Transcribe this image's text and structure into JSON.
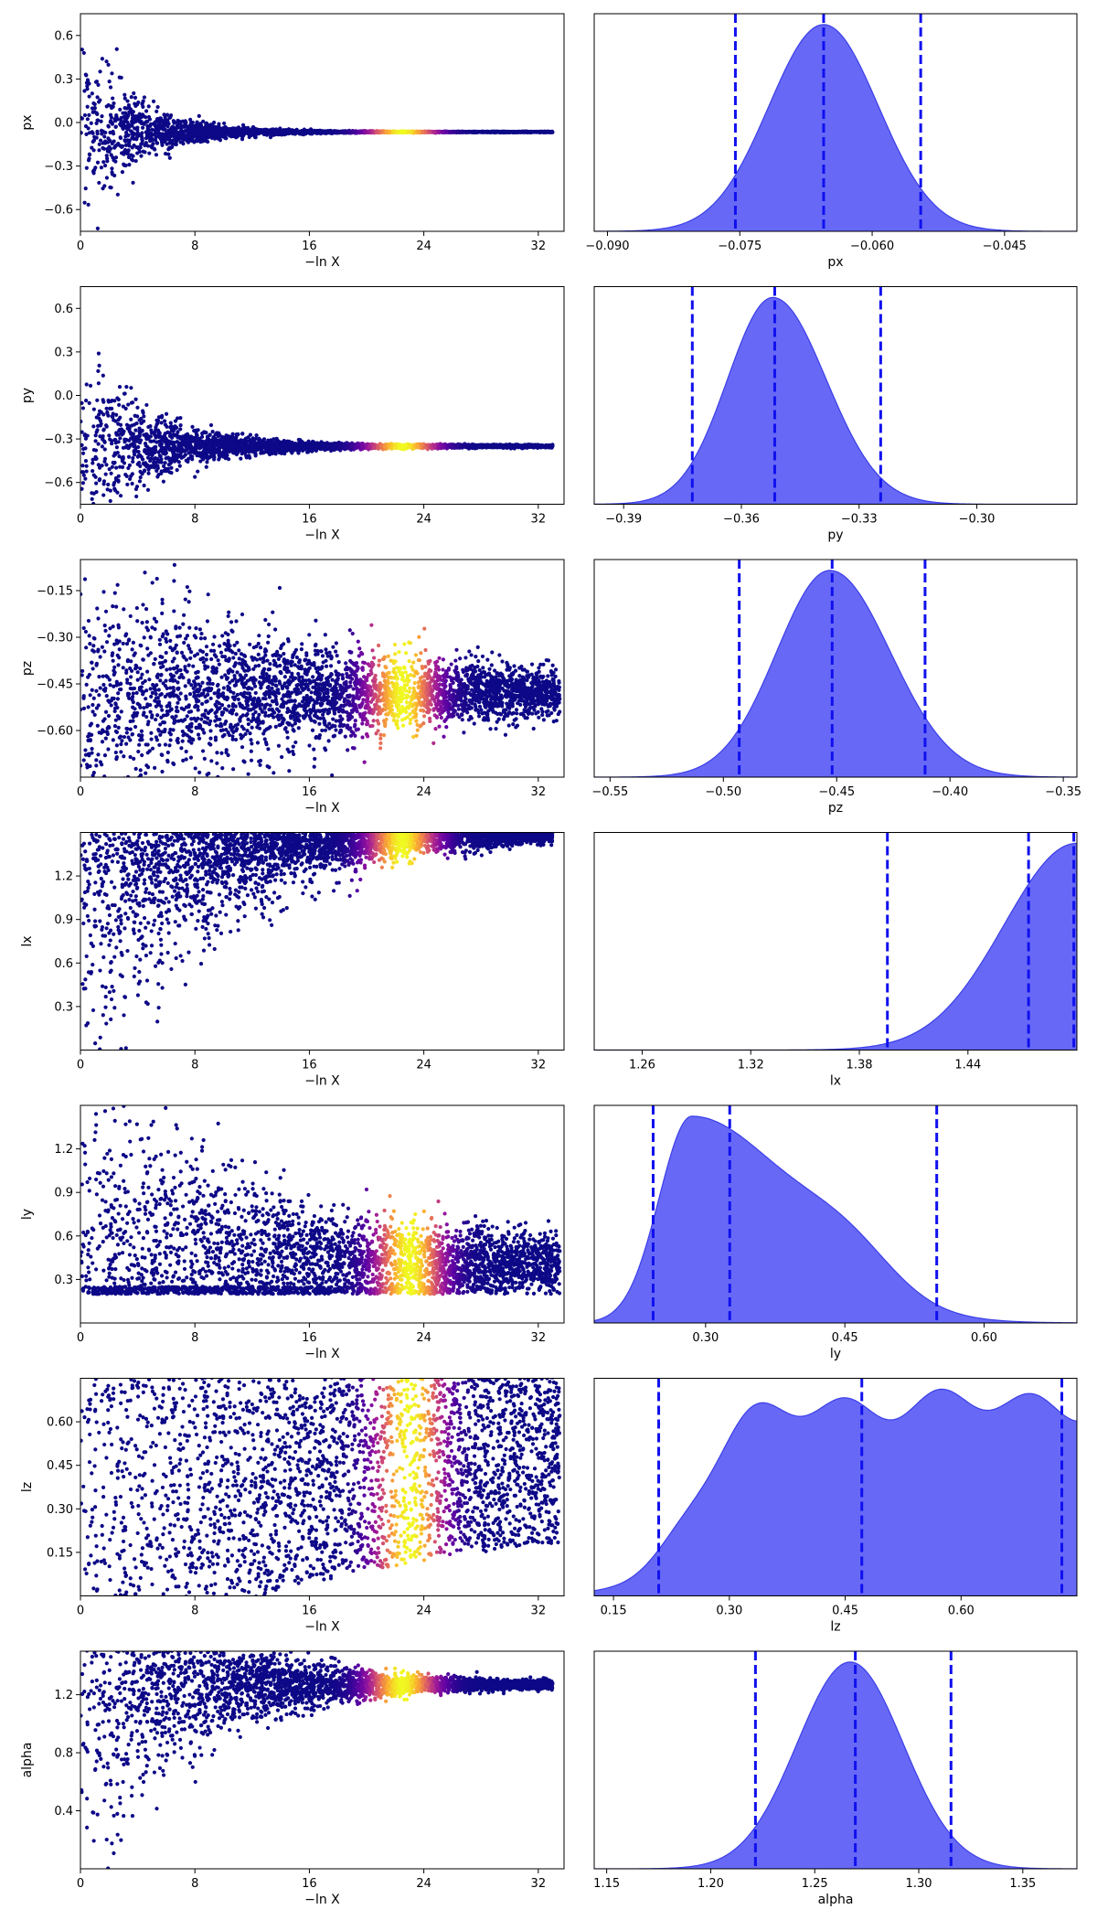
{
  "figure": {
    "kind": "dynesty trace plot",
    "xlabel_trace": "−ln X"
  },
  "colors": {
    "posterior_fill": "#5a5cf5",
    "posterior_line": "#3b3ee8",
    "quantile_line": "#1010ee",
    "colormap": [
      "#0d0887",
      "#5b02a3",
      "#9a179b",
      "#cb4678",
      "#eb7852",
      "#fbb32f",
      "#f0f921"
    ]
  },
  "chart_data": [
    {
      "type": "scatter",
      "panel": "trace",
      "param": "px",
      "ylabel": "px",
      "xlabel": "−ln X",
      "xlim": [
        0,
        33.8
      ],
      "ylim": [
        -0.75,
        0.75
      ],
      "xticks": [
        0,
        8,
        16,
        24,
        32
      ],
      "xtick_labels": [
        "0",
        "8",
        "16",
        "24",
        "32"
      ],
      "yticks": [
        -0.6,
        -0.3,
        0.0,
        0.3,
        0.6
      ],
      "ytick_labels": [
        "−0.6",
        "−0.3",
        "0.0",
        "0.3",
        "0.6"
      ],
      "trace": {
        "center": -0.065,
        "width_start": 0.75,
        "width_end": 0.003,
        "decay": 0.28,
        "x_end": 33.0,
        "weight_peak": 22.5
      }
    },
    {
      "type": "area",
      "panel": "posterior",
      "param": "px",
      "xlabel": "px",
      "xlim": [
        -0.0915,
        -0.0368
      ],
      "xticks": [
        -0.09,
        -0.075,
        -0.06,
        -0.045
      ],
      "xtick_labels": [
        "−0.090",
        "−0.075",
        "−0.060",
        "−0.045"
      ],
      "density": {
        "mean": -0.0655,
        "sd": 0.0062,
        "skew": 0.0
      },
      "quantiles": [
        -0.0755,
        -0.0655,
        -0.0545
      ]
    },
    {
      "type": "scatter",
      "panel": "trace",
      "param": "py",
      "ylabel": "py",
      "xlabel": "−ln X",
      "xlim": [
        0,
        33.8
      ],
      "ylim": [
        -0.75,
        0.75
      ],
      "xticks": [
        0,
        8,
        16,
        24,
        32
      ],
      "xtick_labels": [
        "0",
        "8",
        "16",
        "24",
        "32"
      ],
      "yticks": [
        -0.6,
        -0.3,
        0.0,
        0.3,
        0.6
      ],
      "ytick_labels": [
        "−0.6",
        "−0.3",
        "0.0",
        "0.3",
        "0.6"
      ],
      "trace": {
        "center": -0.35,
        "width_start": 0.75,
        "width_end": 0.01,
        "decay": 0.22,
        "x_end": 33.0,
        "weight_peak": 22.5
      }
    },
    {
      "type": "area",
      "panel": "posterior",
      "param": "py",
      "xlabel": "py",
      "xlim": [
        -0.3975,
        -0.2745
      ],
      "xticks": [
        -0.39,
        -0.36,
        -0.33,
        -0.3
      ],
      "xtick_labels": [
        "−0.39",
        "−0.36",
        "−0.33",
        "−0.30"
      ],
      "density": {
        "mean": -0.352,
        "sd": 0.0115,
        "skew": 0.2
      },
      "quantiles": [
        -0.3725,
        -0.3515,
        -0.3245
      ]
    },
    {
      "type": "scatter",
      "panel": "trace",
      "param": "pz",
      "ylabel": "pz",
      "xlabel": "−ln X",
      "xlim": [
        0,
        33.8
      ],
      "ylim": [
        -0.75,
        -0.05
      ],
      "xticks": [
        0,
        8,
        16,
        24,
        32
      ],
      "xtick_labels": [
        "0",
        "8",
        "16",
        "24",
        "32"
      ],
      "yticks": [
        -0.6,
        -0.45,
        -0.3,
        -0.15
      ],
      "ytick_labels": [
        "−0.60",
        "−0.45",
        "−0.30",
        "−0.15"
      ],
      "trace": {
        "center": -0.48,
        "width_start": 0.42,
        "width_end": 0.03,
        "decay": 0.06,
        "x_end": 33.5,
        "weight_peak": 22.5
      }
    },
    {
      "type": "area",
      "panel": "posterior",
      "param": "pz",
      "xlabel": "pz",
      "xlim": [
        -0.557,
        -0.344
      ],
      "xticks": [
        -0.55,
        -0.5,
        -0.45,
        -0.4,
        -0.35
      ],
      "xtick_labels": [
        "−0.55",
        "−0.50",
        "−0.45",
        "−0.40",
        "−0.35"
      ],
      "density": {
        "mean": -0.453,
        "sd": 0.0235,
        "skew": 0.15
      },
      "quantiles": [
        -0.493,
        -0.452,
        -0.411
      ]
    },
    {
      "type": "scatter",
      "panel": "trace",
      "param": "lx",
      "ylabel": "lx",
      "xlabel": "−ln X",
      "xlim": [
        0,
        33.8
      ],
      "ylim": [
        0.0,
        1.5
      ],
      "xticks": [
        0,
        8,
        16,
        24,
        32
      ],
      "xtick_labels": [
        "0",
        "8",
        "16",
        "24",
        "32"
      ],
      "yticks": [
        0.3,
        0.6,
        0.9,
        1.2
      ],
      "ytick_labels": [
        "0.3",
        "0.6",
        "0.9",
        "1.2"
      ],
      "trace": {
        "center": 1.5,
        "width_start": 1.5,
        "width_end": 0.02,
        "decay": 0.11,
        "x_end": 33.0,
        "weight_peak": 22.5,
        "upper_bound": true
      }
    },
    {
      "type": "area",
      "panel": "posterior",
      "param": "lx",
      "xlabel": "lx",
      "xlim": [
        1.2335,
        1.5002
      ],
      "xticks": [
        1.26,
        1.32,
        1.38,
        1.44
      ],
      "xtick_labels": [
        "1.26",
        "1.32",
        "1.38",
        "1.44"
      ],
      "density": {
        "mean": 1.5,
        "sd": 0.04,
        "skew": 0.0,
        "half": true
      },
      "quantiles": [
        1.3955,
        1.4735,
        1.4985
      ]
    },
    {
      "type": "scatter",
      "panel": "trace",
      "param": "ly",
      "ylabel": "ly",
      "xlabel": "−ln X",
      "xlim": [
        0,
        33.8
      ],
      "ylim": [
        0.0,
        1.5
      ],
      "xticks": [
        0,
        8,
        16,
        24,
        32
      ],
      "xtick_labels": [
        "0",
        "8",
        "16",
        "24",
        "32"
      ],
      "yticks": [
        0.3,
        0.6,
        0.9,
        1.2
      ],
      "ytick_labels": [
        "0.3",
        "0.6",
        "0.9",
        "1.2"
      ],
      "trace": {
        "center": 0.4,
        "width_start": 1.5,
        "width_end": 0.18,
        "decay": 0.09,
        "x_end": 33.5,
        "weight_peak": 23.0,
        "lower_floor": 0.2
      }
    },
    {
      "type": "area",
      "panel": "posterior",
      "param": "ly",
      "xlabel": "ly",
      "xlim": [
        0.18,
        0.7
      ],
      "xticks": [
        0.3,
        0.45,
        0.6
      ],
      "xtick_labels": [
        "0.30",
        "0.45",
        "0.60"
      ],
      "density": {
        "mean": 0.285,
        "sd": 0.035,
        "skew": 2.4
      },
      "quantiles": [
        0.2435,
        0.326,
        0.549
      ]
    },
    {
      "type": "scatter",
      "panel": "trace",
      "param": "lz",
      "ylabel": "lz",
      "xlabel": "−ln X",
      "xlim": [
        0,
        33.8
      ],
      "ylim": [
        0.0,
        0.75
      ],
      "xticks": [
        0,
        8,
        16,
        24,
        32
      ],
      "xtick_labels": [
        "0",
        "8",
        "16",
        "24",
        "32"
      ],
      "yticks": [
        0.15,
        0.3,
        0.45,
        0.6
      ],
      "ytick_labels": [
        "0.15",
        "0.30",
        "0.45",
        "0.60"
      ],
      "trace": {
        "center": 0.47,
        "width_start": 0.75,
        "width_end": 0.28,
        "decay": 0.03,
        "x_end": 33.5,
        "weight_peak": 23.0,
        "uniform": true
      }
    },
    {
      "type": "area",
      "panel": "posterior",
      "param": "lz",
      "xlabel": "lz",
      "xlim": [
        0.125,
        0.75
      ],
      "xticks": [
        0.15,
        0.3,
        0.45,
        0.6
      ],
      "xtick_labels": [
        "0.15",
        "0.30",
        "0.45",
        "0.60"
      ],
      "density": {
        "plateau_start": 0.25,
        "plateau_end": 0.75,
        "rise_sd": 0.035
      },
      "quantiles": [
        0.2085,
        0.4715,
        0.7305
      ]
    },
    {
      "type": "scatter",
      "panel": "trace",
      "param": "alpha",
      "ylabel": "alpha",
      "xlabel": "−ln X",
      "xlim": [
        0,
        33.8
      ],
      "ylim": [
        0.0,
        1.5
      ],
      "xticks": [
        0,
        8,
        16,
        24,
        32
      ],
      "xtick_labels": [
        "0",
        "8",
        "16",
        "24",
        "32"
      ],
      "yticks": [
        0.4,
        0.8,
        1.2
      ],
      "ytick_labels": [
        "0.4",
        "0.8",
        "1.2"
      ],
      "trace": {
        "center": 1.27,
        "width_start": 1.5,
        "width_end": 0.02,
        "decay": 0.14,
        "x_end": 33.0,
        "weight_peak": 22.5
      }
    },
    {
      "type": "area",
      "panel": "posterior",
      "param": "alpha",
      "xlabel": "alpha",
      "xlim": [
        1.144,
        1.376
      ],
      "xticks": [
        1.15,
        1.2,
        1.25,
        1.3,
        1.35
      ],
      "xtick_labels": [
        "1.15",
        "1.20",
        "1.25",
        "1.30",
        "1.35"
      ],
      "density": {
        "mean": 1.267,
        "sd": 0.0255,
        "skew": 0.0
      },
      "quantiles": [
        1.2215,
        1.2695,
        1.3155
      ]
    }
  ]
}
